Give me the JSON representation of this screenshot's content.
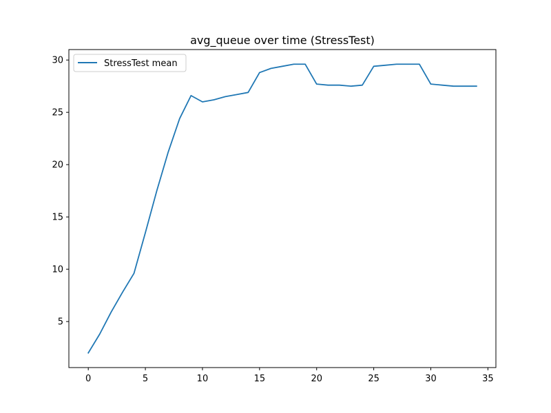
{
  "chart_data": {
    "type": "line",
    "title": "avg_queue over time (StressTest)",
    "xlabel": "",
    "ylabel": "",
    "xlim": [
      -1.7,
      35.7
    ],
    "ylim": [
      0.6,
      31.0
    ],
    "x_ticks": [
      0,
      5,
      10,
      15,
      20,
      25,
      30,
      35
    ],
    "y_ticks": [
      5,
      10,
      15,
      20,
      25,
      30
    ],
    "grid": false,
    "legend_position": "upper-left",
    "x": [
      0,
      1,
      2,
      3,
      4,
      5,
      6,
      7,
      8,
      9,
      10,
      11,
      12,
      13,
      14,
      15,
      16,
      17,
      18,
      19,
      20,
      21,
      22,
      23,
      24,
      25,
      26,
      27,
      28,
      29,
      30,
      31,
      32,
      33,
      34
    ],
    "series": [
      {
        "name": "StressTest mean",
        "color": "#1f77b4",
        "values": [
          2.0,
          3.8,
          5.9,
          7.8,
          9.6,
          13.5,
          17.5,
          21.2,
          24.4,
          26.6,
          26.0,
          26.2,
          26.5,
          26.7,
          26.9,
          28.8,
          29.2,
          29.4,
          29.6,
          29.6,
          27.7,
          27.6,
          27.6,
          27.5,
          27.6,
          29.4,
          29.5,
          29.6,
          29.6,
          29.6,
          27.7,
          27.6,
          27.5,
          27.5,
          27.5
        ]
      }
    ]
  }
}
